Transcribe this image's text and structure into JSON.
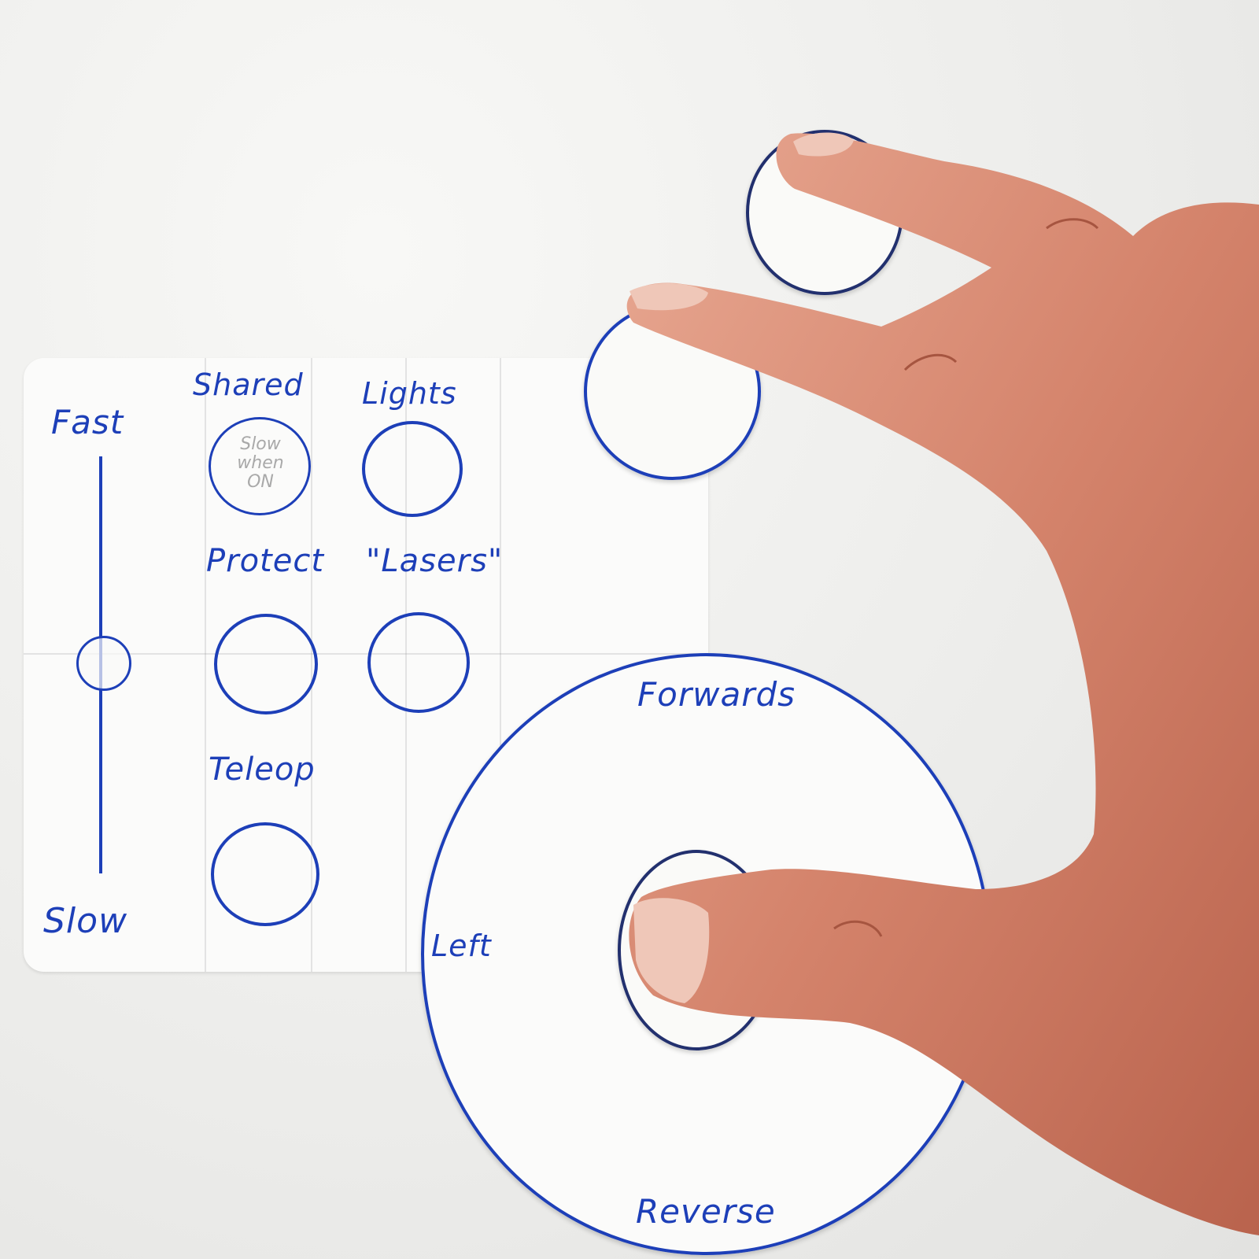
{
  "slider": {
    "top_label": "Fast",
    "bottom_label": "Slow"
  },
  "buttons": [
    {
      "label": "Shared",
      "note_lines": [
        "Slow",
        "when",
        "ON"
      ]
    },
    {
      "label": "Lights"
    },
    {
      "label": "Protect"
    },
    {
      "label": "\"Lasers\""
    },
    {
      "label": "Teleop"
    }
  ],
  "joystick": {
    "forward_label": "Forwards",
    "reverse_label": "Reverse",
    "left_label": "Left"
  },
  "colors": {
    "ink": "#1d3fb8",
    "paper": "#fbfbfa",
    "background": "#ececea",
    "skin": "#d9907a"
  }
}
